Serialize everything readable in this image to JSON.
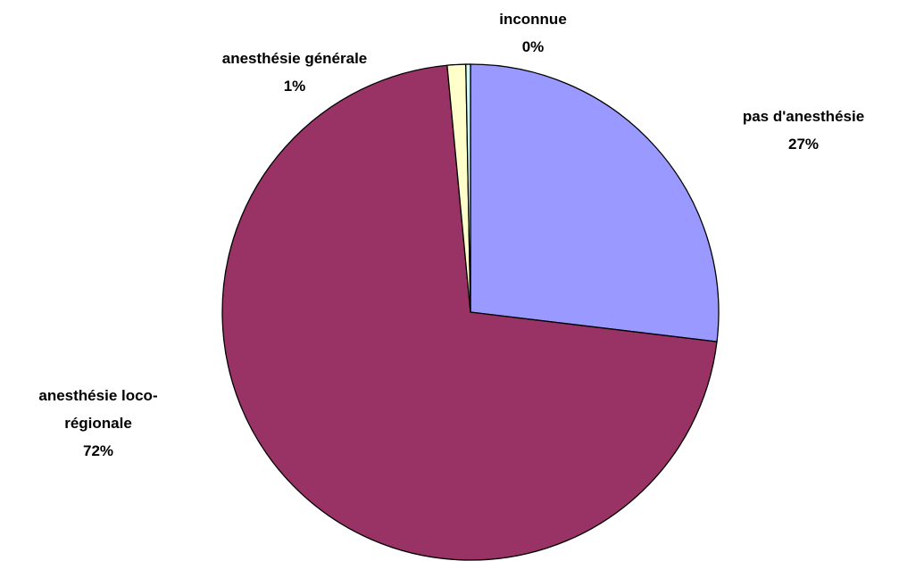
{
  "chart_data": {
    "type": "pie",
    "categories": [
      "pas d'anesthésie",
      "anesthésie loco-régionale",
      "anesthésie générale",
      "inconnue"
    ],
    "values": [
      26.9,
      71.6,
      1.2,
      0.3
    ],
    "value_labels": [
      "27%",
      "72%",
      "1%",
      "0%"
    ],
    "colors": [
      "#9999ff",
      "#993366",
      "#ffffcc",
      "#ccffff"
    ]
  }
}
